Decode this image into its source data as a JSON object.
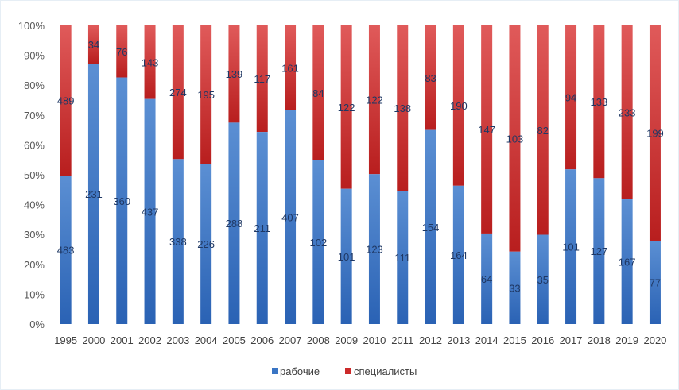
{
  "chart_data": {
    "type": "bar",
    "stacked": "percent",
    "categories": [
      "1995",
      "2000",
      "2001",
      "2002",
      "2003",
      "2004",
      "2005",
      "2006",
      "2007",
      "2008",
      "2009",
      "2010",
      "2011",
      "2012",
      "2013",
      "2014",
      "2015",
      "2016",
      "2017",
      "2018",
      "2019",
      "2020"
    ],
    "series": [
      {
        "name": "рабочие",
        "color": "#3a75c4",
        "values": [
          483,
          231,
          360,
          437,
          338,
          226,
          288,
          211,
          407,
          102,
          101,
          123,
          111,
          154,
          164,
          64,
          33,
          35,
          101,
          127,
          167,
          77
        ]
      },
      {
        "name": "специалисты",
        "color": "#cc2a2a",
        "values": [
          489,
          34,
          76,
          143,
          274,
          195,
          139,
          117,
          161,
          84,
          122,
          122,
          138,
          83,
          190,
          147,
          103,
          82,
          94,
          133,
          233,
          199
        ]
      }
    ],
    "yticks": [
      "0%",
      "10%",
      "20%",
      "30%",
      "40%",
      "50%",
      "60%",
      "70%",
      "80%",
      "90%",
      "100%"
    ],
    "ylim": [
      0,
      100
    ],
    "grid": false,
    "legend": "bottom",
    "title": "",
    "xlabel": "",
    "ylabel": ""
  }
}
